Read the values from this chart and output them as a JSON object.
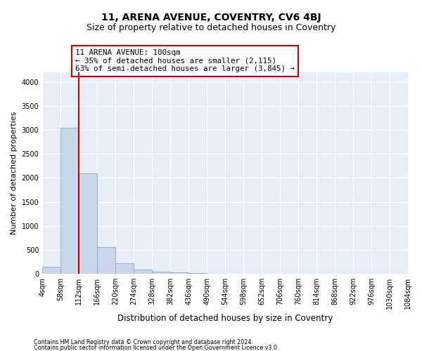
{
  "title": "11, ARENA AVENUE, COVENTRY, CV6 4BJ",
  "subtitle": "Size of property relative to detached houses in Coventry",
  "xlabel": "Distribution of detached houses by size in Coventry",
  "ylabel": "Number of detached properties",
  "footnote1": "Contains HM Land Registry data © Crown copyright and database right 2024.",
  "footnote2": "Contains public sector information licensed under the Open Government Licence v3.0.",
  "bar_values": [
    150,
    3050,
    2100,
    550,
    220,
    80,
    50,
    30,
    20,
    5,
    0,
    0,
    0,
    0,
    0,
    0,
    0,
    0,
    0,
    0
  ],
  "bar_color": "#c8d8ea",
  "bar_edge_color": "#7aaac8",
  "bin_labels": [
    "4sqm",
    "58sqm",
    "112sqm",
    "166sqm",
    "220sqm",
    "274sqm",
    "328sqm",
    "382sqm",
    "436sqm",
    "490sqm",
    "544sqm",
    "598sqm",
    "652sqm",
    "706sqm",
    "760sqm",
    "814sqm",
    "868sqm",
    "922sqm",
    "976sqm",
    "1030sqm",
    "1084sqm"
  ],
  "property_line_color": "#cc0000",
  "annotation_text": "11 ARENA AVENUE: 100sqm\n← 35% of detached houses are smaller (2,115)\n63% of semi-detached houses are larger (3,845) →",
  "annotation_box_color": "#cc0000",
  "ylim": [
    0,
    4200
  ],
  "yticks": [
    0,
    500,
    1000,
    1500,
    2000,
    2500,
    3000,
    3500,
    4000
  ],
  "background_color": "#e8eef5",
  "title_fontsize": 10,
  "subtitle_fontsize": 9,
  "tick_fontsize": 7,
  "ylabel_fontsize": 8,
  "xlabel_fontsize": 8.5
}
